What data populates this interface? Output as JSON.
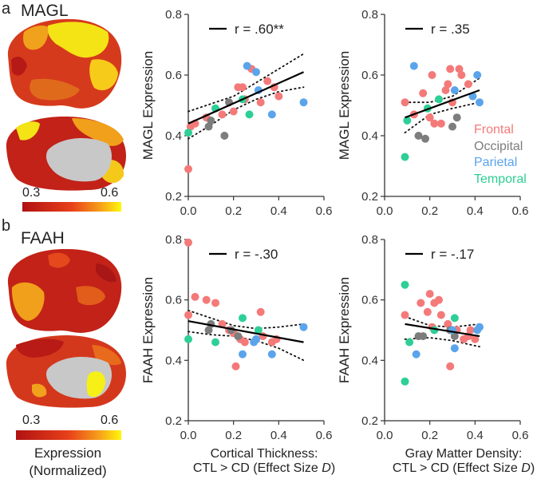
{
  "panels": [
    {
      "letter": "a",
      "gene": "MAGL"
    },
    {
      "letter": "b",
      "gene": "FAAH"
    }
  ],
  "colorbar": {
    "min_label": "0.3",
    "max_label": "0.6",
    "title": "Expression",
    "subtitle": "(Normalized)"
  },
  "xlabels": {
    "left": [
      "Cortical  Thickness:",
      "CTL > CD (Effect Size ",
      "D",
      ")"
    ],
    "right": [
      "Gray Matter Density:",
      "CTL > CD (Effect Size ",
      "D",
      ")"
    ]
  },
  "legend": {
    "items": [
      {
        "label": "Frontal",
        "color": "#f47a7a"
      },
      {
        "label": "Occipital",
        "color": "#7d7d7d"
      },
      {
        "label": "Parietal",
        "color": "#5aa4ec"
      },
      {
        "label": "Temporal",
        "color": "#2ecf96"
      }
    ]
  },
  "chart_data": [
    {
      "type": "scatter",
      "id": "magl-ct",
      "ylabel": "MAGL Expression",
      "annotation": "r = .60**",
      "xlim": [
        0,
        0.6
      ],
      "ylim": [
        0.2,
        0.8
      ],
      "xticks": [
        "0.0",
        "0.2",
        "0.4",
        "0.6"
      ],
      "yticks": [
        "0.2",
        "0.4",
        "0.6",
        "0.8"
      ],
      "fit": [
        [
          0.0,
          0.44
        ],
        [
          0.51,
          0.61
        ]
      ],
      "ci_upper": [
        [
          0.0,
          0.48
        ],
        [
          0.1,
          0.505
        ],
        [
          0.2,
          0.53
        ],
        [
          0.3,
          0.575
        ],
        [
          0.4,
          0.62
        ],
        [
          0.51,
          0.67
        ]
      ],
      "ci_lower": [
        [
          0.0,
          0.39
        ],
        [
          0.1,
          0.435
        ],
        [
          0.2,
          0.485
        ],
        [
          0.3,
          0.52
        ],
        [
          0.4,
          0.545
        ],
        [
          0.51,
          0.56
        ]
      ],
      "points": [
        {
          "x": 0.0,
          "y": 0.29,
          "group": "Frontal"
        },
        {
          "x": 0.01,
          "y": 0.43,
          "group": "Frontal"
        },
        {
          "x": 0.03,
          "y": 0.44,
          "group": "Frontal"
        },
        {
          "x": 0.08,
          "y": 0.46,
          "group": "Frontal"
        },
        {
          "x": 0.15,
          "y": 0.47,
          "group": "Frontal"
        },
        {
          "x": 0.2,
          "y": 0.48,
          "group": "Frontal"
        },
        {
          "x": 0.22,
          "y": 0.56,
          "group": "Frontal"
        },
        {
          "x": 0.24,
          "y": 0.56,
          "group": "Frontal"
        },
        {
          "x": 0.25,
          "y": 0.52,
          "group": "Frontal"
        },
        {
          "x": 0.28,
          "y": 0.62,
          "group": "Frontal"
        },
        {
          "x": 0.32,
          "y": 0.51,
          "group": "Frontal"
        },
        {
          "x": 0.35,
          "y": 0.58,
          "group": "Frontal"
        },
        {
          "x": 0.38,
          "y": 0.56,
          "group": "Frontal"
        },
        {
          "x": 0.4,
          "y": 0.53,
          "group": "Frontal"
        },
        {
          "x": 0.09,
          "y": 0.43,
          "group": "Occipital"
        },
        {
          "x": 0.1,
          "y": 0.45,
          "group": "Occipital"
        },
        {
          "x": 0.16,
          "y": 0.4,
          "group": "Occipital"
        },
        {
          "x": 0.18,
          "y": 0.51,
          "group": "Occipital"
        },
        {
          "x": 0.26,
          "y": 0.63,
          "group": "Parietal"
        },
        {
          "x": 0.3,
          "y": 0.61,
          "group": "Parietal"
        },
        {
          "x": 0.31,
          "y": 0.55,
          "group": "Parietal"
        },
        {
          "x": 0.37,
          "y": 0.47,
          "group": "Parietal"
        },
        {
          "x": 0.51,
          "y": 0.51,
          "group": "Parietal"
        },
        {
          "x": 0.0,
          "y": 0.41,
          "group": "Temporal"
        },
        {
          "x": 0.12,
          "y": 0.49,
          "group": "Temporal"
        },
        {
          "x": 0.24,
          "y": 0.52,
          "group": "Temporal"
        },
        {
          "x": 0.27,
          "y": 0.47,
          "group": "Temporal"
        }
      ]
    },
    {
      "type": "scatter",
      "id": "magl-gm",
      "ylabel": "MAGL Expression",
      "annotation": "r = .35",
      "xlim": [
        0,
        0.6
      ],
      "ylim": [
        0.2,
        0.8
      ],
      "xticks": [
        "0.0",
        "0.2",
        "0.4",
        "0.6"
      ],
      "yticks": [
        "0.2",
        "0.4",
        "0.6",
        "0.8"
      ],
      "fit": [
        [
          0.09,
          0.46
        ],
        [
          0.42,
          0.55
        ]
      ],
      "ci_upper": [
        [
          0.09,
          0.51
        ],
        [
          0.2,
          0.51
        ],
        [
          0.3,
          0.53
        ],
        [
          0.42,
          0.59
        ]
      ],
      "ci_lower": [
        [
          0.09,
          0.41
        ],
        [
          0.2,
          0.47
        ],
        [
          0.3,
          0.49
        ],
        [
          0.42,
          0.51
        ]
      ],
      "points": [
        {
          "x": 0.09,
          "y": 0.51,
          "group": "Frontal"
        },
        {
          "x": 0.13,
          "y": 0.47,
          "group": "Frontal"
        },
        {
          "x": 0.17,
          "y": 0.54,
          "group": "Frontal"
        },
        {
          "x": 0.2,
          "y": 0.46,
          "group": "Frontal"
        },
        {
          "x": 0.21,
          "y": 0.6,
          "group": "Frontal"
        },
        {
          "x": 0.22,
          "y": 0.44,
          "group": "Frontal"
        },
        {
          "x": 0.25,
          "y": 0.44,
          "group": "Frontal"
        },
        {
          "x": 0.27,
          "y": 0.55,
          "group": "Frontal"
        },
        {
          "x": 0.28,
          "y": 0.57,
          "group": "Frontal"
        },
        {
          "x": 0.29,
          "y": 0.62,
          "group": "Frontal"
        },
        {
          "x": 0.3,
          "y": 0.51,
          "group": "Frontal"
        },
        {
          "x": 0.33,
          "y": 0.62,
          "group": "Frontal"
        },
        {
          "x": 0.34,
          "y": 0.6,
          "group": "Frontal"
        },
        {
          "x": 0.37,
          "y": 0.57,
          "group": "Frontal"
        },
        {
          "x": 0.15,
          "y": 0.4,
          "group": "Occipital"
        },
        {
          "x": 0.18,
          "y": 0.39,
          "group": "Occipital"
        },
        {
          "x": 0.3,
          "y": 0.43,
          "group": "Occipital"
        },
        {
          "x": 0.32,
          "y": 0.46,
          "group": "Occipital"
        },
        {
          "x": 0.13,
          "y": 0.63,
          "group": "Parietal"
        },
        {
          "x": 0.31,
          "y": 0.55,
          "group": "Parietal"
        },
        {
          "x": 0.39,
          "y": 0.53,
          "group": "Parietal"
        },
        {
          "x": 0.42,
          "y": 0.51,
          "group": "Parietal"
        },
        {
          "x": 0.41,
          "y": 0.6,
          "group": "Parietal"
        },
        {
          "x": 0.09,
          "y": 0.33,
          "group": "Temporal"
        },
        {
          "x": 0.1,
          "y": 0.45,
          "group": "Temporal"
        },
        {
          "x": 0.19,
          "y": 0.49,
          "group": "Temporal"
        },
        {
          "x": 0.24,
          "y": 0.52,
          "group": "Temporal"
        }
      ]
    },
    {
      "type": "scatter",
      "id": "faah-ct",
      "ylabel": "FAAH Expression",
      "annotation": "r = -.30",
      "xlim": [
        0,
        0.6
      ],
      "ylim": [
        0.2,
        0.8
      ],
      "xticks": [
        "0.0",
        "0.2",
        "0.4",
        "0.6"
      ],
      "yticks": [
        "0.2",
        "0.4",
        "0.6",
        "0.8"
      ],
      "fit": [
        [
          0.0,
          0.53
        ],
        [
          0.51,
          0.46
        ]
      ],
      "ci_upper": [
        [
          0.0,
          0.565
        ],
        [
          0.1,
          0.54
        ],
        [
          0.2,
          0.515
        ],
        [
          0.3,
          0.505
        ],
        [
          0.4,
          0.51
        ],
        [
          0.51,
          0.52
        ]
      ],
      "ci_lower": [
        [
          0.0,
          0.495
        ],
        [
          0.1,
          0.485
        ],
        [
          0.2,
          0.48
        ],
        [
          0.3,
          0.465
        ],
        [
          0.4,
          0.44
        ],
        [
          0.51,
          0.4
        ]
      ],
      "points": [
        {
          "x": 0.0,
          "y": 0.79,
          "group": "Frontal"
        },
        {
          "x": 0.0,
          "y": 0.55,
          "group": "Frontal"
        },
        {
          "x": 0.03,
          "y": 0.61,
          "group": "Frontal"
        },
        {
          "x": 0.08,
          "y": 0.6,
          "group": "Frontal"
        },
        {
          "x": 0.12,
          "y": 0.59,
          "group": "Frontal"
        },
        {
          "x": 0.15,
          "y": 0.52,
          "group": "Frontal"
        },
        {
          "x": 0.18,
          "y": 0.5,
          "group": "Frontal"
        },
        {
          "x": 0.2,
          "y": 0.49,
          "group": "Frontal"
        },
        {
          "x": 0.21,
          "y": 0.38,
          "group": "Frontal"
        },
        {
          "x": 0.23,
          "y": 0.47,
          "group": "Frontal"
        },
        {
          "x": 0.25,
          "y": 0.46,
          "group": "Frontal"
        },
        {
          "x": 0.32,
          "y": 0.56,
          "group": "Frontal"
        },
        {
          "x": 0.33,
          "y": 0.48,
          "group": "Frontal"
        },
        {
          "x": 0.37,
          "y": 0.46,
          "group": "Frontal"
        },
        {
          "x": 0.39,
          "y": 0.47,
          "group": "Frontal"
        },
        {
          "x": 0.09,
          "y": 0.5,
          "group": "Occipital"
        },
        {
          "x": 0.1,
          "y": 0.52,
          "group": "Occipital"
        },
        {
          "x": 0.19,
          "y": 0.5,
          "group": "Occipital"
        },
        {
          "x": 0.22,
          "y": 0.48,
          "group": "Occipital"
        },
        {
          "x": 0.24,
          "y": 0.42,
          "group": "Parietal"
        },
        {
          "x": 0.29,
          "y": 0.46,
          "group": "Parietal"
        },
        {
          "x": 0.3,
          "y": 0.47,
          "group": "Parietal"
        },
        {
          "x": 0.37,
          "y": 0.42,
          "group": "Parietal"
        },
        {
          "x": 0.51,
          "y": 0.51,
          "group": "Parietal"
        },
        {
          "x": 0.0,
          "y": 0.47,
          "group": "Temporal"
        },
        {
          "x": 0.12,
          "y": 0.46,
          "group": "Temporal"
        },
        {
          "x": 0.24,
          "y": 0.54,
          "group": "Temporal"
        },
        {
          "x": 0.31,
          "y": 0.5,
          "group": "Temporal"
        }
      ]
    },
    {
      "type": "scatter",
      "id": "faah-gm",
      "ylabel": "FAAH Expression",
      "annotation": "r = -.17",
      "xlim": [
        0,
        0.6
      ],
      "ylim": [
        0.2,
        0.8
      ],
      "xticks": [
        "0.0",
        "0.2",
        "0.4",
        "0.6"
      ],
      "yticks": [
        "0.2",
        "0.4",
        "0.6",
        "0.8"
      ],
      "fit": [
        [
          0.09,
          0.52
        ],
        [
          0.42,
          0.48
        ]
      ],
      "ci_upper": [
        [
          0.09,
          0.545
        ],
        [
          0.2,
          0.515
        ],
        [
          0.3,
          0.51
        ],
        [
          0.42,
          0.52
        ]
      ],
      "ci_lower": [
        [
          0.09,
          0.47
        ],
        [
          0.2,
          0.475
        ],
        [
          0.3,
          0.465
        ],
        [
          0.42,
          0.445
        ]
      ],
      "points": [
        {
          "x": 0.09,
          "y": 0.55,
          "group": "Frontal"
        },
        {
          "x": 0.16,
          "y": 0.59,
          "group": "Frontal"
        },
        {
          "x": 0.19,
          "y": 0.56,
          "group": "Frontal"
        },
        {
          "x": 0.2,
          "y": 0.62,
          "group": "Frontal"
        },
        {
          "x": 0.21,
          "y": 0.51,
          "group": "Frontal"
        },
        {
          "x": 0.22,
          "y": 0.59,
          "group": "Frontal"
        },
        {
          "x": 0.24,
          "y": 0.6,
          "group": "Frontal"
        },
        {
          "x": 0.25,
          "y": 0.55,
          "group": "Frontal"
        },
        {
          "x": 0.28,
          "y": 0.52,
          "group": "Frontal"
        },
        {
          "x": 0.29,
          "y": 0.38,
          "group": "Frontal"
        },
        {
          "x": 0.32,
          "y": 0.5,
          "group": "Frontal"
        },
        {
          "x": 0.35,
          "y": 0.47,
          "group": "Frontal"
        },
        {
          "x": 0.37,
          "y": 0.48,
          "group": "Frontal"
        },
        {
          "x": 0.38,
          "y": 0.5,
          "group": "Frontal"
        },
        {
          "x": 0.4,
          "y": 0.47,
          "group": "Frontal"
        },
        {
          "x": 0.15,
          "y": 0.48,
          "group": "Occipital"
        },
        {
          "x": 0.17,
          "y": 0.48,
          "group": "Occipital"
        },
        {
          "x": 0.29,
          "y": 0.5,
          "group": "Occipital"
        },
        {
          "x": 0.31,
          "y": 0.48,
          "group": "Occipital"
        },
        {
          "x": 0.14,
          "y": 0.42,
          "group": "Parietal"
        },
        {
          "x": 0.3,
          "y": 0.5,
          "group": "Parietal"
        },
        {
          "x": 0.31,
          "y": 0.44,
          "group": "Parietal"
        },
        {
          "x": 0.41,
          "y": 0.5,
          "group": "Parietal"
        },
        {
          "x": 0.42,
          "y": 0.51,
          "group": "Parietal"
        },
        {
          "x": 0.09,
          "y": 0.65,
          "group": "Temporal"
        },
        {
          "x": 0.09,
          "y": 0.33,
          "group": "Temporal"
        },
        {
          "x": 0.11,
          "y": 0.46,
          "group": "Temporal"
        },
        {
          "x": 0.22,
          "y": 0.5,
          "group": "Temporal"
        },
        {
          "x": 0.31,
          "y": 0.54,
          "group": "Temporal"
        }
      ]
    }
  ]
}
